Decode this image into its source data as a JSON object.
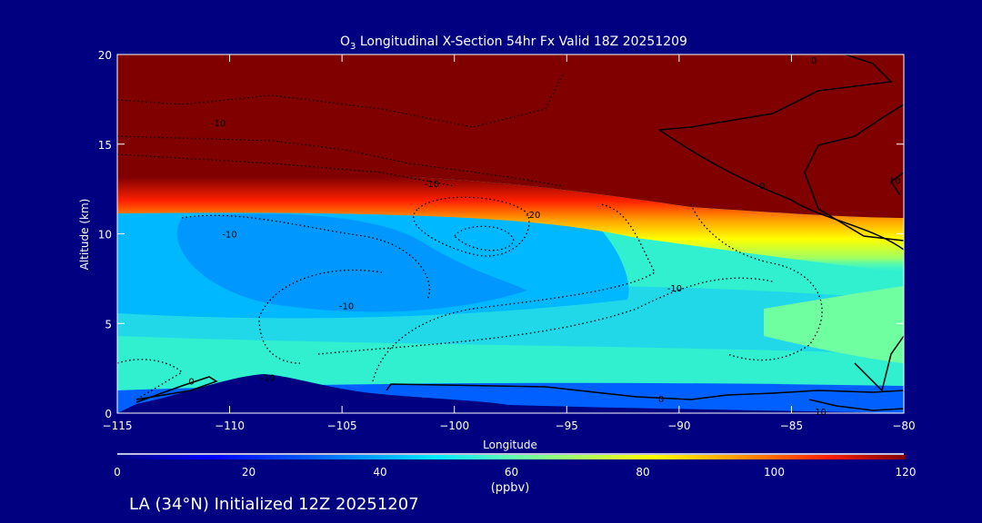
{
  "chart_data": {
    "type": "heatmap",
    "subtype": "filled-contour cross-section",
    "title_prefix": "O",
    "title_subscript": "3",
    "title_rest": " Longitudinal X-Section 54hr  Fx Valid 18Z 20251209",
    "xlabel": "Longitude",
    "ylabel": "Altitude (km)",
    "xlim": [
      -115,
      -80
    ],
    "ylim": [
      0,
      20
    ],
    "xticks": [
      "−115",
      "−110",
      "−105",
      "−100",
      "−95",
      "−90",
      "−85",
      "−80"
    ],
    "xtick_values": [
      -115,
      -110,
      -105,
      -100,
      -95,
      -90,
      -85,
      -80
    ],
    "yticks": [
      "0",
      "5",
      "10",
      "15",
      "20"
    ],
    "ytick_values": [
      0,
      5,
      10,
      15,
      20
    ],
    "colorbar": {
      "label": "(ppbv)",
      "range": [
        0,
        120
      ],
      "ticks": [
        "0",
        "20",
        "40",
        "60",
        "80",
        "100",
        "120"
      ],
      "tick_values": [
        0,
        20,
        40,
        60,
        80,
        100,
        120
      ]
    },
    "tropopause_altitude_km": [
      {
        "lon": -115,
        "alt": 13.2
      },
      {
        "lon": -100,
        "alt": 13.0
      },
      {
        "lon": -95,
        "alt": 12.4
      },
      {
        "lon": -90,
        "alt": 11.4
      },
      {
        "lon": -85,
        "alt": 10.8
      },
      {
        "lon": -80,
        "alt": 10.4
      }
    ],
    "contour_labels": [
      {
        "text": "-10",
        "lon": -110.5,
        "alt": 16.2
      },
      {
        "text": "-10",
        "lon": -110.0,
        "alt": 10.0
      },
      {
        "text": "-10",
        "lon": -101.0,
        "alt": 12.8
      },
      {
        "text": "-20",
        "lon": -96.5,
        "alt": 11.1
      },
      {
        "text": "-10",
        "lon": -104.8,
        "alt": 6.0
      },
      {
        "text": "-10",
        "lon": -90.2,
        "alt": 7.0
      },
      {
        "text": "-10",
        "lon": -108.3,
        "alt": 2.0
      },
      {
        "text": "0",
        "lon": -111.7,
        "alt": 1.8
      },
      {
        "text": "0",
        "lon": -86.3,
        "alt": 12.7
      },
      {
        "text": "0",
        "lon": -90.8,
        "alt": 0.8
      },
      {
        "text": "0",
        "lon": -84.0,
        "alt": 19.7
      },
      {
        "text": "10",
        "lon": -80.4,
        "alt": 13.0
      },
      {
        "text": "10",
        "lon": -83.7,
        "alt": 0.1
      }
    ]
  },
  "footer": {
    "caption": "LA (34°N) Initialized 12Z 20251207"
  }
}
